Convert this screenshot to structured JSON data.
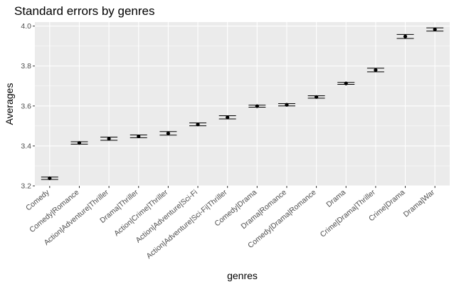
{
  "chart_data": {
    "type": "scatter",
    "title": "Standard errors by genres",
    "xlabel": "genres",
    "ylabel": "Averages",
    "ylim": [
      3.2,
      4.02
    ],
    "yticks": [
      "3.2",
      "3.4",
      "3.6",
      "3.8",
      "4.0"
    ],
    "grid": true,
    "categories": [
      "Comedy",
      "Comedy|Romance",
      "Action|Adventure|Thriller",
      "Drama|Thriller",
      "Action|Crime|Thriller",
      "Action|Adventure|Sci-Fi",
      "Action|Adventure|Sci-Fi|Thriller",
      "Comedy|Drama",
      "Drama|Romance",
      "Comedy|Drama|Romance",
      "Drama",
      "Crime|Drama|Thriller",
      "Crime|Drama",
      "Drama|War"
    ],
    "values": [
      3.238,
      3.415,
      3.436,
      3.448,
      3.463,
      3.508,
      3.543,
      3.599,
      3.606,
      3.645,
      3.713,
      3.78,
      3.948,
      3.983
    ],
    "error_low": [
      3.232,
      3.409,
      3.428,
      3.441,
      3.454,
      3.501,
      3.535,
      3.594,
      3.6,
      3.639,
      3.708,
      3.771,
      3.938,
      3.975
    ],
    "error_high": [
      3.244,
      3.421,
      3.444,
      3.455,
      3.472,
      3.515,
      3.551,
      3.604,
      3.612,
      3.651,
      3.718,
      3.789,
      3.958,
      3.991
    ]
  },
  "colors": {
    "panel_bg": "#ebebeb",
    "grid_major": "#ffffff",
    "point": "#000000",
    "tick_text": "#4d4d4d"
  }
}
